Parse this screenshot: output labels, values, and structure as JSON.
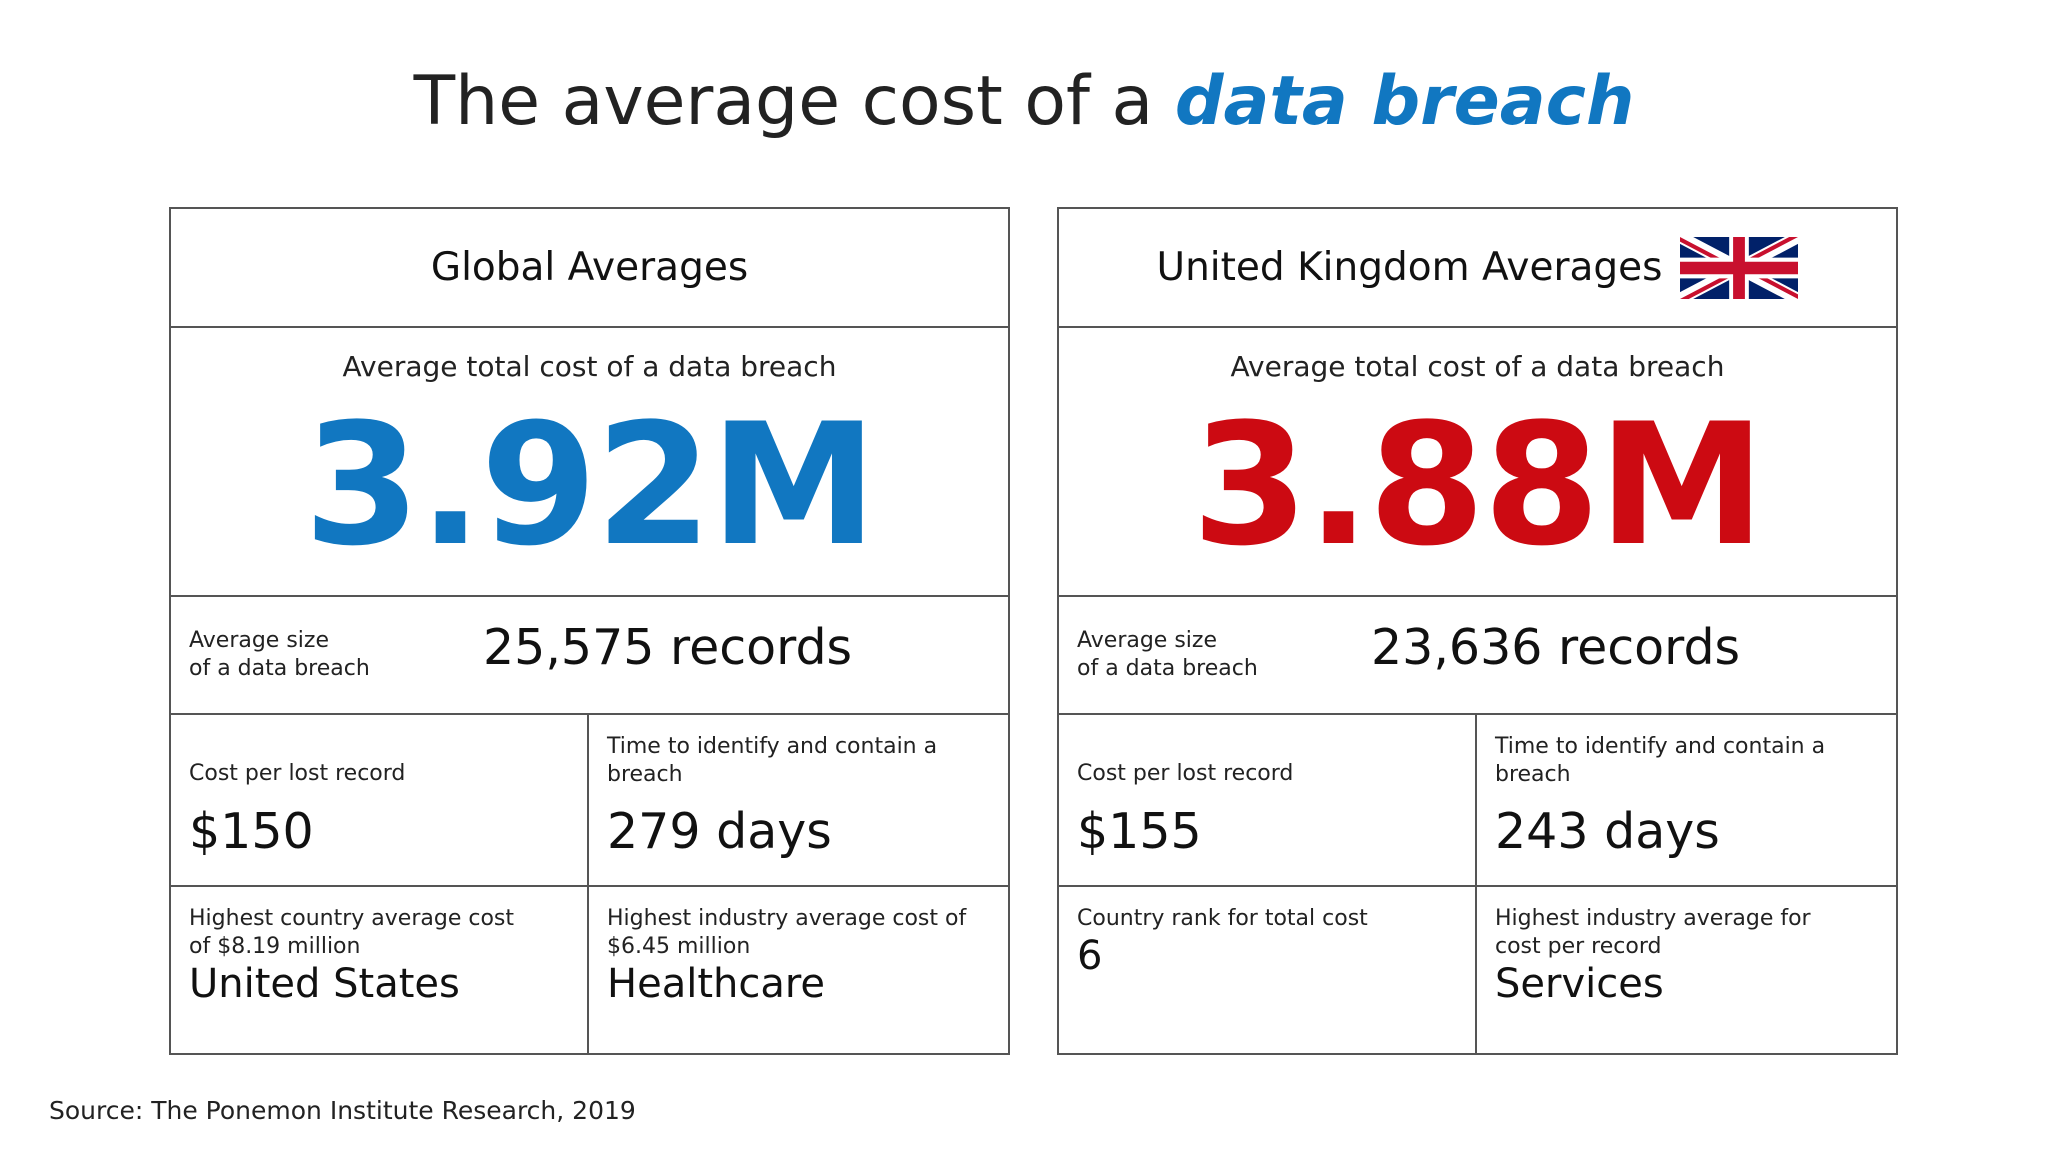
{
  "title": {
    "prefix": "The average cost of a ",
    "highlight": "data breach"
  },
  "colors": {
    "accent_blue": "#1177c1",
    "accent_red": "#cc0a12",
    "border": "#555555"
  },
  "global": {
    "header": "Global Averages",
    "total_label": "Average total cost of a data breach",
    "total_value": "3.92M",
    "size_label_line1": "Average size",
    "size_label_line2": "of a data breach",
    "size_value": "25,575 records",
    "cost_per_record_label": "Cost per lost record",
    "cost_per_record_value": "$150",
    "time_label": "Time to identify and contain a breach",
    "time_value": "279 days",
    "highest_country_label": "Highest country average cost of $8.19 million",
    "highest_country_value": "United States",
    "highest_industry_label": "Highest industry average cost of $6.45 million",
    "highest_industry_value": "Healthcare"
  },
  "uk": {
    "header": "United Kingdom Averages",
    "flag_icon": "uk-flag-icon",
    "total_label": "Average total cost of a data breach",
    "total_value": "3.88M",
    "size_label_line1": "Average size",
    "size_label_line2": "of a data breach",
    "size_value": "23,636 records",
    "cost_per_record_label": "Cost per lost record",
    "cost_per_record_value": "$155",
    "time_label": "Time to identify and contain a breach",
    "time_value": "243 days",
    "country_rank_label": "Country rank for total cost",
    "country_rank_value": "6",
    "highest_industry_label": "Highest industry average for cost per record",
    "highest_industry_value": "Services"
  },
  "source": "Source: The Ponemon Institute Research, 2019"
}
